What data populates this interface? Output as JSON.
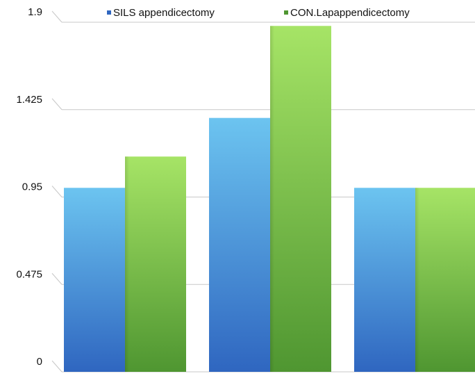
{
  "chart_data": {
    "type": "bar",
    "categories": [
      "",
      "",
      ""
    ],
    "series": [
      {
        "name": "SILS appendicectomy",
        "values": [
          1.0,
          1.38,
          1.0
        ]
      },
      {
        "name": "CON.Lapappendicectomy",
        "values": [
          1.17,
          1.88,
          1.0
        ]
      }
    ],
    "ylim": [
      0,
      1.9
    ],
    "yticks": [
      0,
      0.475,
      0.95,
      1.425,
      1.9
    ],
    "ytick_labels": [
      "0",
      "0.475",
      "0.95",
      "1.425",
      "1.9"
    ],
    "title": "",
    "xlabel": "",
    "ylabel": "",
    "grid": true,
    "legend_position": "top",
    "colors": {
      "series_1_top": "#6cc4f0",
      "series_1_bottom": "#2f66c0",
      "series_2_top": "#a6e466",
      "series_2_bottom": "#4f9631",
      "gridline": "#c8c8c8"
    }
  }
}
